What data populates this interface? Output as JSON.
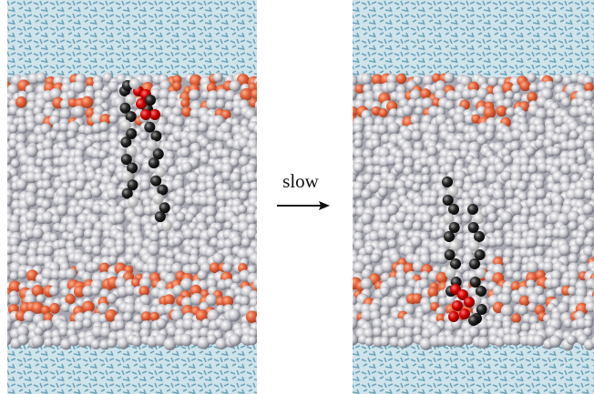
{
  "arrow_label": "slow"
}
